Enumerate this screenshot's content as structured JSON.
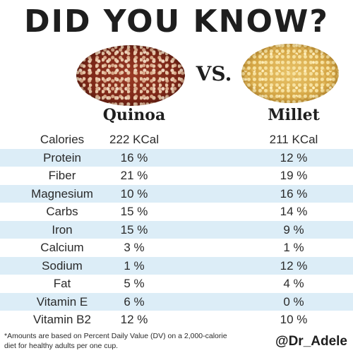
{
  "headline": "DID YOU KNOW?",
  "vs_label": "VS.",
  "columns": {
    "quinoa": "Quinoa",
    "millet": "Millet"
  },
  "images": {
    "quinoa": "quinoa-grains-photo",
    "millet": "millet-grains-photo"
  },
  "rows": [
    {
      "name": "Calories",
      "quinoa": "222 KCal",
      "millet": "211 KCal"
    },
    {
      "name": "Protein",
      "quinoa": "16 %",
      "millet": "12 %"
    },
    {
      "name": "Fiber",
      "quinoa": "21 %",
      "millet": "19 %"
    },
    {
      "name": "Magnesium",
      "quinoa": "10 %",
      "millet": "16 %"
    },
    {
      "name": "Carbs",
      "quinoa": "15 %",
      "millet": "14 %"
    },
    {
      "name": "Iron",
      "quinoa": "15 %",
      "millet": "9 %"
    },
    {
      "name": "Calcium",
      "quinoa": "3 %",
      "millet": "1 %"
    },
    {
      "name": "Sodium",
      "quinoa": "1 %",
      "millet": "12 %"
    },
    {
      "name": "Fat",
      "quinoa": "5 %",
      "millet": "4 %"
    },
    {
      "name": "Vitamin E",
      "quinoa": "6 %",
      "millet": "0 %"
    },
    {
      "name": "Vitamin B2",
      "quinoa": "12 %",
      "millet": "10 %"
    }
  ],
  "footnote": "*Amounts are based on Percent Daily Value (DV) on a 2,000-calorie diet for healthy adults per one cup.",
  "handle": "@Dr_Adele",
  "colors": {
    "row_shade": "#dcedf7",
    "text": "#1e1e1e"
  }
}
